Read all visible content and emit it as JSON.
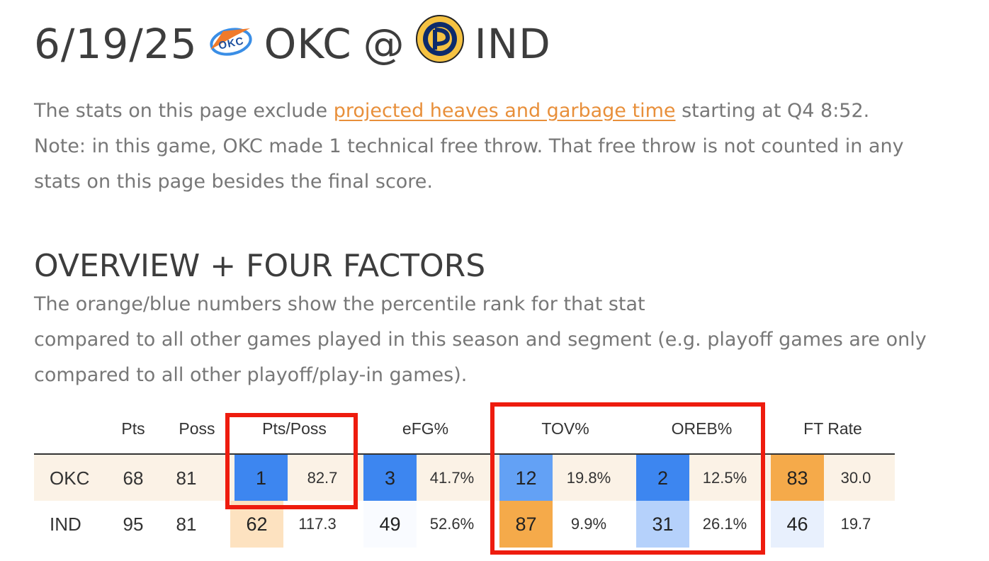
{
  "header": {
    "date": "6/19/25",
    "away": "OKC",
    "at": "@",
    "home": "IND"
  },
  "intro": {
    "prefix": "The stats on this page exclude ",
    "link": "projected heaves and garbage time",
    "suffix": " starting at Q4 8:52.",
    "note": "Note: in this game, OKC made 1 technical free throw. That free throw is not counted in any stats on this page besides the final score."
  },
  "section": {
    "title": "OVERVIEW + FOUR FACTORS",
    "desc_line1": "The orange/blue numbers show the percentile rank for that stat",
    "desc_line2": "compared to all other games played in this season and segment (e.g. playoff games are only compared to all other playoff/play-in games)."
  },
  "table": {
    "columns": [
      "Pts",
      "Poss",
      "Pts/Poss",
      "eFG%",
      "TOV%",
      "OREB%",
      "FT Rate"
    ],
    "rows": [
      {
        "team": "OKC",
        "pts": "68",
        "poss": "81",
        "ptsposs_rank": "1",
        "ptsposs": "82.7",
        "efg_rank": "3",
        "efg": "41.7%",
        "tov_rank": "12",
        "tov": "19.8%",
        "oreb_rank": "2",
        "oreb": "12.5%",
        "ft_rank": "83",
        "ft": "30.0"
      },
      {
        "team": "IND",
        "pts": "95",
        "poss": "81",
        "ptsposs_rank": "62",
        "ptsposs": "117.3",
        "efg_rank": "49",
        "efg": "52.6%",
        "tov_rank": "87",
        "tov": "9.9%",
        "oreb_rank": "31",
        "oreb": "26.1%",
        "ft_rank": "46",
        "ft": "19.7"
      }
    ]
  },
  "colors": {
    "link": "#e88f3a",
    "highlight_box": "#ee1c0e",
    "okc_row_bg": "#fbf2e6",
    "rank_blue_dark": "#3d86f0",
    "rank_blue_mid": "#63a1f5",
    "rank_blue_light": "#b5d1fb",
    "rank_blue_faint": "#e8f0fd",
    "rank_orange_dark": "#f5aa4a",
    "rank_orange_light": "#fde2c0",
    "rank_white": "#f9fbff"
  },
  "icons": {
    "okc_logo": "okc-thunder-logo",
    "ind_logo": "indiana-pacers-logo"
  }
}
